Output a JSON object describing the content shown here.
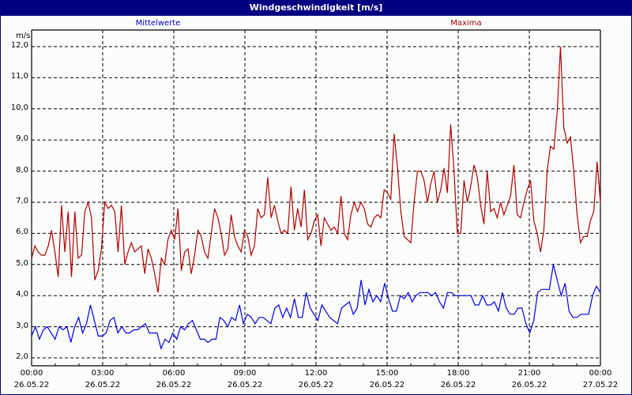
{
  "window": {
    "title": "Windgeschwindigkeit [m/s]"
  },
  "legend": {
    "mean_label": "Mittelwerte",
    "max_label": "Maxima"
  },
  "colors": {
    "title_bg": "#000080",
    "mean": "#0000e0",
    "max": "#b00000",
    "grid": "#000000"
  },
  "chart_data": {
    "type": "line",
    "title": "Windgeschwindigkeit [m/s]",
    "xlabel": "",
    "ylabel": "m/s",
    "ylim": [
      2.0,
      12.0
    ],
    "y_ticks": [
      "2,0",
      "3,0",
      "4,0",
      "5,0",
      "6,0",
      "7,0",
      "8,0",
      "9,0",
      "10,0",
      "11,0",
      "12,0"
    ],
    "x_ticks": [
      {
        "time": "00:00",
        "date": "26.05.22"
      },
      {
        "time": "03:00",
        "date": "26.05.22"
      },
      {
        "time": "06:00",
        "date": "26.05.22"
      },
      {
        "time": "09:00",
        "date": "26.05.22"
      },
      {
        "time": "12:00",
        "date": "26.05.22"
      },
      {
        "time": "15:00",
        "date": "26.05.22"
      },
      {
        "time": "18:00",
        "date": "26.05.22"
      },
      {
        "time": "21:00",
        "date": "26.05.22"
      },
      {
        "time": "00:00",
        "date": "27.05.22"
      }
    ],
    "grid": true,
    "legend_position": "top",
    "x_range_hours": [
      0,
      24
    ],
    "series": [
      {
        "name": "Mittelwerte",
        "color": "#0000e0",
        "values": [
          2.7,
          3.0,
          2.6,
          2.9,
          3.0,
          2.8,
          2.6,
          3.0,
          2.9,
          3.0,
          2.5,
          3.0,
          3.3,
          2.8,
          3.1,
          3.7,
          3.2,
          2.7,
          2.7,
          2.8,
          3.2,
          3.3,
          2.8,
          3.0,
          2.8,
          2.8,
          2.9,
          2.9,
          3.0,
          3.1,
          2.8,
          2.8,
          2.8,
          2.3,
          2.6,
          2.5,
          2.8,
          2.6,
          3.0,
          2.9,
          3.1,
          3.2,
          2.9,
          2.6,
          2.6,
          2.5,
          2.6,
          2.6,
          3.3,
          3.2,
          3.0,
          3.3,
          3.2,
          3.7,
          3.1,
          3.4,
          3.3,
          3.1,
          3.3,
          3.3,
          3.2,
          3.1,
          3.6,
          3.7,
          3.3,
          3.6,
          3.3,
          3.9,
          3.3,
          3.3,
          4.1,
          3.6,
          3.4,
          3.2,
          3.7,
          3.5,
          3.3,
          3.2,
          3.1,
          3.6,
          3.7,
          3.8,
          3.4,
          3.6,
          4.5,
          3.7,
          4.2,
          3.8,
          4.0,
          3.8,
          4.4,
          3.9,
          3.5,
          3.5,
          4.0,
          3.9,
          4.1,
          3.8,
          4.0,
          4.1,
          4.1,
          4.1,
          4.0,
          4.1,
          3.8,
          3.6,
          4.1,
          4.1,
          4.0,
          4.0,
          4.0,
          4.0,
          4.0,
          3.7,
          3.7,
          4.0,
          3.7,
          3.7,
          3.8,
          3.5,
          4.1,
          3.6,
          3.4,
          3.4,
          3.6,
          3.6,
          3.1,
          2.8,
          3.2,
          4.1,
          4.2,
          4.2,
          4.2,
          5.0,
          4.5,
          4.0,
          4.4,
          3.5,
          3.3,
          3.3,
          3.4,
          3.4,
          3.4,
          4.0,
          4.3,
          4.1
        ]
      },
      {
        "name": "Maxima",
        "color": "#b00000",
        "values": [
          5.2,
          5.6,
          5.4,
          5.3,
          5.3,
          5.6,
          6.1,
          5.4,
          4.6,
          6.9,
          5.4,
          6.7,
          4.6,
          6.7,
          5.2,
          5.3,
          6.7,
          7.0,
          6.5,
          4.5,
          4.8,
          5.5,
          7.0,
          6.8,
          6.9,
          6.7,
          5.4,
          6.9,
          5.0,
          5.4,
          5.7,
          5.4,
          5.5,
          5.6,
          4.7,
          5.5,
          5.2,
          4.7,
          4.1,
          5.2,
          5.0,
          5.8,
          6.1,
          5.8,
          6.8,
          4.8,
          5.4,
          5.5,
          4.7,
          5.3,
          6.1,
          5.9,
          5.4,
          5.2,
          6.0,
          6.8,
          6.5,
          6.0,
          5.3,
          5.5,
          6.6,
          5.9,
          5.6,
          5.4,
          6.1,
          5.9,
          5.3,
          5.6,
          6.8,
          6.5,
          6.6,
          7.8,
          6.5,
          6.9,
          6.4,
          6.0,
          6.1,
          6.0,
          7.5,
          6.1,
          6.8,
          6.2,
          7.4,
          5.8,
          6.0,
          6.4,
          6.6,
          5.6,
          6.5,
          6.3,
          6.1,
          6.2,
          6.0,
          7.2,
          6.0,
          5.8,
          6.6,
          7.0,
          6.7,
          7.0,
          6.8,
          6.3,
          6.2,
          6.5,
          6.6,
          6.5,
          7.4,
          7.3,
          7.1,
          9.2,
          8.1,
          6.7,
          5.9,
          5.8,
          5.7,
          7.0,
          8.0,
          8.0,
          7.7,
          7.0,
          7.6,
          8.0,
          7.0,
          7.4,
          8.1,
          7.3,
          9.5,
          8.0,
          6.0,
          6.0,
          7.7,
          7.0,
          7.5,
          8.2,
          7.8,
          6.9,
          6.3,
          8.0,
          6.7,
          6.8,
          6.5,
          7.0,
          6.6,
          6.9,
          7.2,
          8.2,
          6.6,
          6.5,
          7.0,
          7.4,
          7.7,
          6.4,
          6.0,
          5.4,
          6.1,
          8.0,
          8.8,
          8.7,
          9.9,
          12.0,
          9.4,
          8.9,
          9.1,
          8.0,
          6.6,
          5.7,
          5.9,
          5.9,
          6.4,
          6.7,
          8.3,
          7.0
        ]
      }
    ]
  }
}
